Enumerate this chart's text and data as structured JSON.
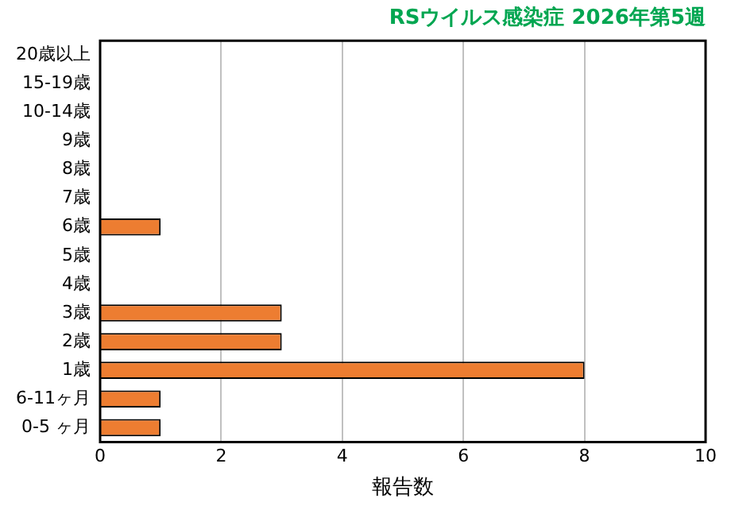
{
  "chart_data": {
    "type": "bar",
    "orientation": "horizontal",
    "title": "RSウイルス感染症 2026年第5週",
    "xlabel": "報告数",
    "categories": [
      "20歳以上",
      "15-19歳",
      "10-14歳",
      "9歳",
      "8歳",
      "7歳",
      "6歳",
      "5歳",
      "4歳",
      "3歳",
      "2歳",
      "1歳",
      "6-11ヶ月",
      "0-5 ヶ月"
    ],
    "values": [
      0,
      0,
      0,
      0,
      0,
      0,
      1,
      0,
      0,
      3,
      3,
      8,
      1,
      1
    ],
    "color": "#ed7d31",
    "xlim": [
      0,
      10
    ],
    "xticks": [
      0,
      2,
      4,
      6,
      8,
      10
    ],
    "grid": "x",
    "legend": false
  }
}
